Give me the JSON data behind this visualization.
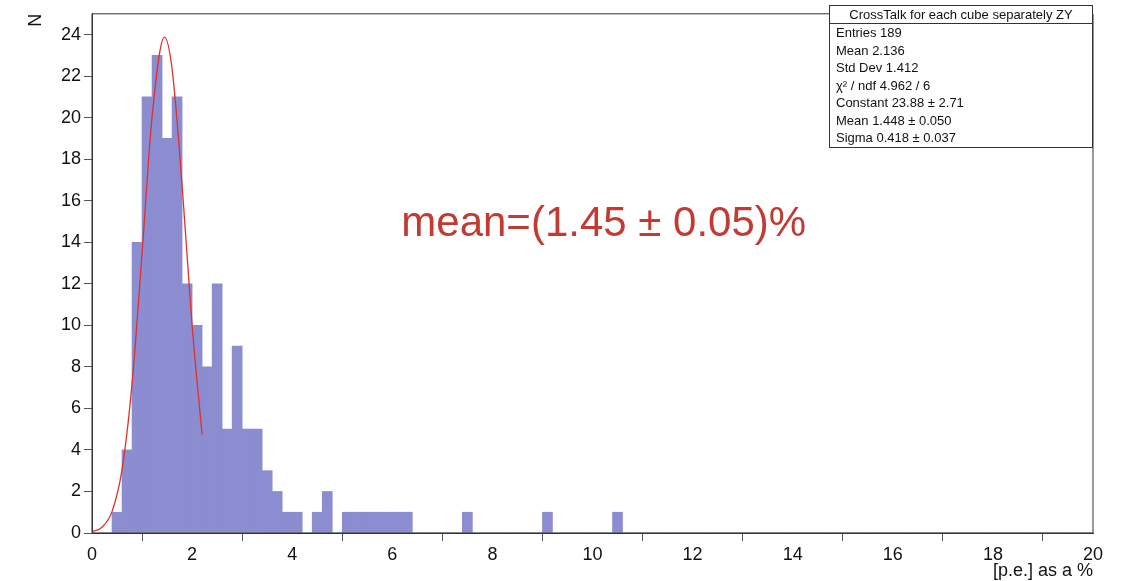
{
  "chart_data": {
    "type": "histogram",
    "xlabel": "[p.e.] as a %",
    "ylabel": "N",
    "xlim": [
      0,
      20
    ],
    "xticks": [
      0,
      2,
      4,
      6,
      8,
      10,
      12,
      14,
      16,
      18,
      20
    ],
    "ylim": [
      0,
      25
    ],
    "yticks": [
      0,
      2,
      4,
      6,
      8,
      10,
      12,
      14,
      16,
      18,
      20,
      22,
      24
    ],
    "grid": false,
    "legend": false,
    "color": "#8c8cd0",
    "bins": [
      0,
      0.2,
      0.4,
      0.6,
      0.8,
      1,
      1.2,
      1.4,
      1.6,
      1.8,
      2,
      2.2,
      2.4,
      2.6,
      2.8,
      3,
      3.2,
      3.4,
      3.6,
      3.8,
      4,
      4.2,
      4.4,
      4.6,
      4.8,
      5,
      5.2,
      5.4,
      5.6,
      5.8,
      6,
      6.2,
      6.4,
      6.6,
      6.8,
      7,
      7.2,
      7.4,
      7.6,
      7.8,
      8,
      8.2,
      8.4,
      8.6,
      8.8,
      9,
      9.2,
      9.4,
      9.6,
      9.8,
      10,
      10.2,
      10.4,
      10.6,
      10.8,
      11,
      11.2,
      11.4,
      11.6,
      11.8,
      12,
      12.2,
      12.4,
      12.6,
      12.8,
      13,
      13.2,
      13.4,
      13.6,
      13.8,
      14,
      14.2,
      14.4,
      14.6,
      14.8,
      15,
      15.2,
      15.4,
      15.6,
      15.8,
      16,
      16.2,
      16.4,
      16.6,
      16.8,
      17,
      17.2,
      17.4,
      17.6,
      17.8,
      18,
      18.2,
      18.4,
      18.6,
      18.8,
      19,
      19.2,
      19.4,
      19.6,
      19.8,
      20
    ],
    "values": [
      0,
      0,
      1,
      4,
      14,
      21,
      23,
      19,
      21,
      12,
      10,
      8,
      12,
      5,
      9,
      5,
      5,
      3,
      2,
      1,
      1,
      0,
      1,
      2,
      0,
      1,
      1,
      1,
      1,
      1,
      1,
      1,
      0,
      0,
      0,
      0,
      0,
      1,
      0,
      0,
      0,
      0,
      0,
      0,
      0,
      1,
      0,
      0,
      0,
      0,
      0,
      0,
      1,
      0,
      0,
      0,
      0,
      0,
      0,
      0,
      0,
      0,
      0,
      0,
      0,
      0,
      0,
      0,
      0,
      0,
      0,
      0,
      0,
      0,
      0,
      0,
      0,
      0,
      0,
      0,
      0,
      0,
      0,
      0,
      0,
      0,
      0,
      0,
      0,
      0,
      0,
      0,
      0,
      0,
      0,
      0,
      0,
      0,
      0,
      0
    ],
    "series": [
      {
        "type": "line",
        "color": "#e0302a",
        "x": [
          0,
          0.2,
          0.4,
          0.6,
          0.8,
          1,
          1.2,
          1.448,
          1.6,
          1.8,
          2,
          2.2
        ],
        "values": [
          0.06,
          0.28,
          1.03,
          3.05,
          7.18,
          13.45,
          20.03,
          23.88,
          22.35,
          16.75,
          9.99,
          4.74
        ]
      }
    ],
    "annotations": [
      "mean=(1.45 ± 0.05)%",
      "CrossTalk for each cube separately ZY",
      "Entries 189",
      "Mean 2.136",
      "Std Dev 1.412",
      "χ² / ndf 4.962 / 6",
      "Constant 23.88 ± 2.71",
      "Mean 1.448 ± 0.050",
      "Sigma 0.418 ± 0.037"
    ]
  }
}
